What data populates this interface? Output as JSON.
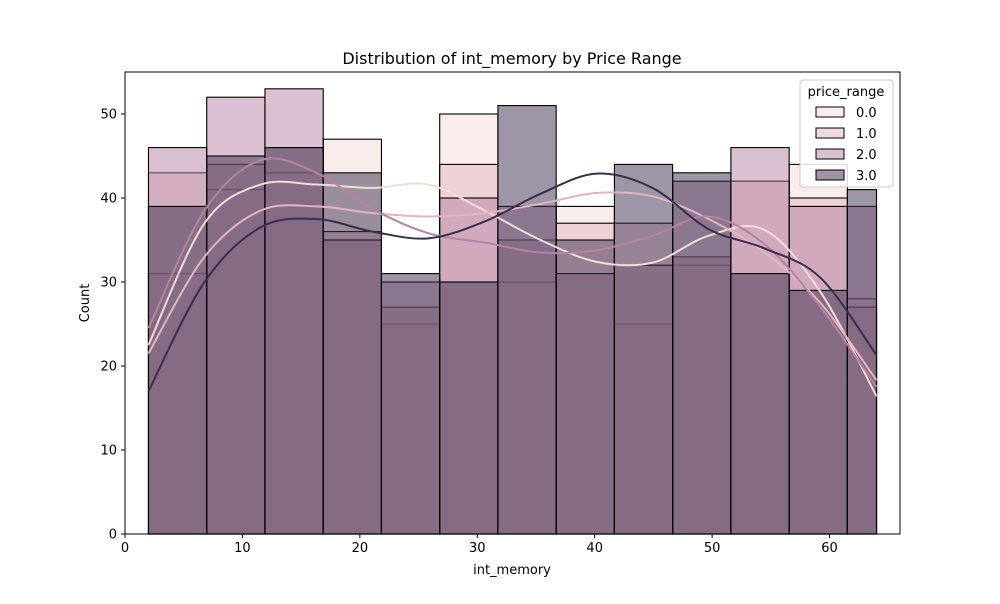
{
  "chart_data": {
    "type": "histogram",
    "title": "Distribution of int_memory by Price Range",
    "xlabel": "int_memory",
    "ylabel": "Count",
    "xlim": [
      0,
      66
    ],
    "ylim": [
      0,
      55
    ],
    "xticks": [
      0,
      10,
      20,
      30,
      40,
      50,
      60
    ],
    "yticks": [
      0,
      10,
      20,
      30,
      40,
      50
    ],
    "grid": false,
    "legend": {
      "title": "price_range",
      "placement": "top-right"
    },
    "bin_edges": [
      2,
      6.96,
      11.92,
      16.88,
      21.84,
      26.8,
      31.76,
      36.72,
      41.68,
      46.64,
      51.6,
      56.56,
      61.52,
      64
    ],
    "series": [
      {
        "name": "0.0",
        "color": "#f1dcd6",
        "values": [
          31,
          41,
          43,
          47,
          25,
          50,
          30,
          39,
          25,
          32,
          42,
          44,
          28
        ],
        "kde": [
          22.5,
          37,
          41.6,
          41.6,
          41.2,
          41.6,
          38.5,
          35,
          32.4,
          32.3,
          35.5,
          36.2,
          28.8,
          16.4
        ]
      },
      {
        "name": "1.0",
        "color": "#e1b5bf",
        "values": [
          43,
          44,
          46,
          36,
          27,
          44,
          35,
          37,
          37,
          33,
          42,
          40,
          27
        ],
        "kde": [
          21.5,
          33,
          38.5,
          39,
          38.2,
          37.8,
          38.2,
          39.3,
          40.6,
          40.2,
          37.5,
          33.5,
          27.5,
          18.3
        ]
      },
      {
        "name": "2.0",
        "color": "#b582a4",
        "values": [
          46,
          52,
          53,
          35,
          30,
          40,
          39,
          31,
          32,
          42,
          46,
          39,
          39
        ],
        "kde": [
          24.5,
          38.5,
          44.5,
          43,
          38.7,
          35.8,
          34.7,
          33.5,
          33.8,
          35.5,
          37.8,
          34.5,
          27,
          17.5
        ]
      },
      {
        "name": "3.0",
        "color": "#3b2e4d",
        "values": [
          39,
          45,
          46,
          43,
          31,
          30,
          51,
          35,
          44,
          43,
          31,
          29,
          41
        ],
        "kde": [
          17,
          30,
          36.5,
          37.5,
          36,
          35.2,
          37.2,
          40.5,
          42.9,
          41.2,
          36.3,
          34,
          30.5,
          21.3
        ]
      }
    ]
  }
}
